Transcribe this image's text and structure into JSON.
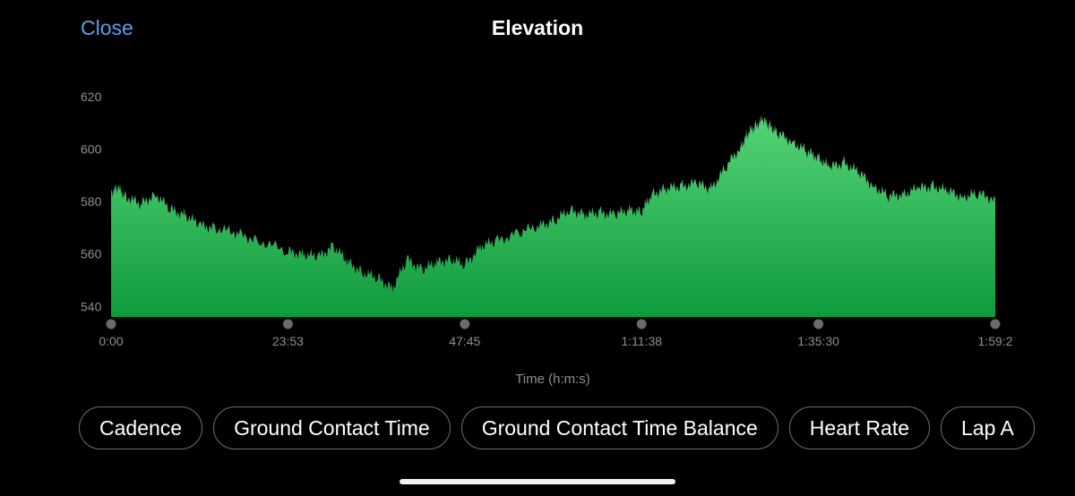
{
  "header": {
    "close_label": "Close",
    "title": "Elevation"
  },
  "colors": {
    "accent": "#5b9cf0",
    "fill_top": "#55d477",
    "fill_bottom": "#0f9b3c",
    "axis_text": "#8e8e93",
    "marker": "#6b6b6b"
  },
  "metric_pills": [
    {
      "label": "Cadence"
    },
    {
      "label": "Ground Contact Time"
    },
    {
      "label": "Ground Contact Time Balance"
    },
    {
      "label": "Heart Rate"
    },
    {
      "label": "Lap A"
    }
  ],
  "chart_data": {
    "type": "area",
    "title": "Elevation",
    "xlabel": "Time (h:m:s)",
    "ylabel": "",
    "ylim": [
      536,
      622
    ],
    "yticks": [
      540,
      560,
      580,
      600,
      620
    ],
    "xticks": [
      "0:00",
      "23:53",
      "47:45",
      "1:11:38",
      "1:35:30",
      "1:59:2"
    ],
    "x_unit": "minutes",
    "series": [
      {
        "name": "",
        "x": [
          0,
          1,
          2,
          4,
          6,
          8,
          10,
          12,
          14,
          17,
          20,
          23.9,
          26,
          28,
          30,
          32,
          34,
          36,
          38,
          40,
          42,
          44,
          46,
          47.75,
          50,
          52,
          55,
          58,
          60,
          62,
          64,
          66,
          68,
          70,
          71.6,
          73,
          75,
          77,
          79,
          81,
          83,
          85,
          86,
          87,
          88,
          89,
          90,
          92,
          94,
          95.5,
          97,
          99,
          101,
          103,
          105,
          107,
          109,
          111,
          113,
          115,
          117,
          119.4
        ],
        "values": [
          584,
          585,
          582,
          579,
          583,
          577,
          575,
          571,
          570,
          568,
          565,
          561,
          560,
          559,
          563,
          557,
          553,
          551,
          547,
          558,
          554,
          557,
          558,
          556,
          563,
          565,
          568,
          571,
          573,
          577,
          575,
          576,
          575,
          577,
          576,
          583,
          585,
          586,
          587,
          585,
          593,
          601,
          606,
          609,
          611,
          609,
          606,
          603,
          599,
          597,
          593,
          595,
          591,
          586,
          582,
          583,
          585,
          586,
          584,
          582,
          583,
          581
        ]
      }
    ],
    "grid": false,
    "legend": "none"
  }
}
